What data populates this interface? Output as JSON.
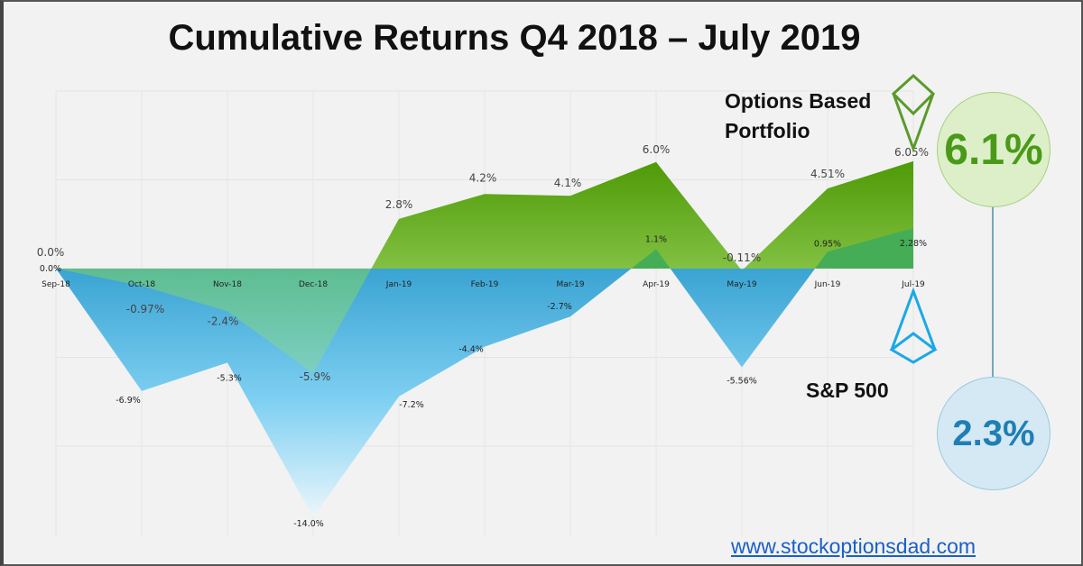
{
  "chart_data": {
    "type": "area",
    "title": "Cumulative Returns Q4 2018 – July 2019",
    "categories": [
      "Sep-18",
      "Oct-18",
      "Nov-18",
      "Dec-18",
      "Jan-19",
      "Feb-19",
      "Mar-19",
      "Apr-19",
      "May-19",
      "Jun-19",
      "Jul-19"
    ],
    "series": [
      {
        "name": "Options Based Portfolio",
        "values": [
          0.0,
          -0.97,
          -2.4,
          -5.9,
          2.8,
          4.2,
          4.1,
          6.0,
          -0.11,
          4.51,
          6.05
        ],
        "labels": [
          "0.0%",
          "-0.97%",
          "-2.4%",
          "-5.9%",
          "2.8%",
          "4.2%",
          "4.1%",
          "6.0%",
          "-0.11%",
          "4.51%",
          "6.05%"
        ],
        "color": "#5aa01e"
      },
      {
        "name": "S&P 500",
        "values": [
          0.0,
          -6.9,
          -5.3,
          -14.0,
          -7.2,
          -4.4,
          -2.7,
          1.1,
          -5.56,
          0.95,
          2.28
        ],
        "labels": [
          "0.0%",
          "-6.9%",
          "-5.3%",
          "-14.0%",
          "-7.2%",
          "-4.4%",
          "-2.7%",
          "1.1%",
          "-5.56%",
          "0.95%",
          "2.28%"
        ],
        "color": "#2b9bd1"
      }
    ],
    "ylim": [
      -15,
      10
    ],
    "grid": true
  },
  "legend": {
    "options_label": "Options Based Portfolio",
    "sp_label": "S&P 500",
    "options_total": "6.1%",
    "sp_total": "2.3%"
  },
  "url": "www.stockoptionsdad.com"
}
